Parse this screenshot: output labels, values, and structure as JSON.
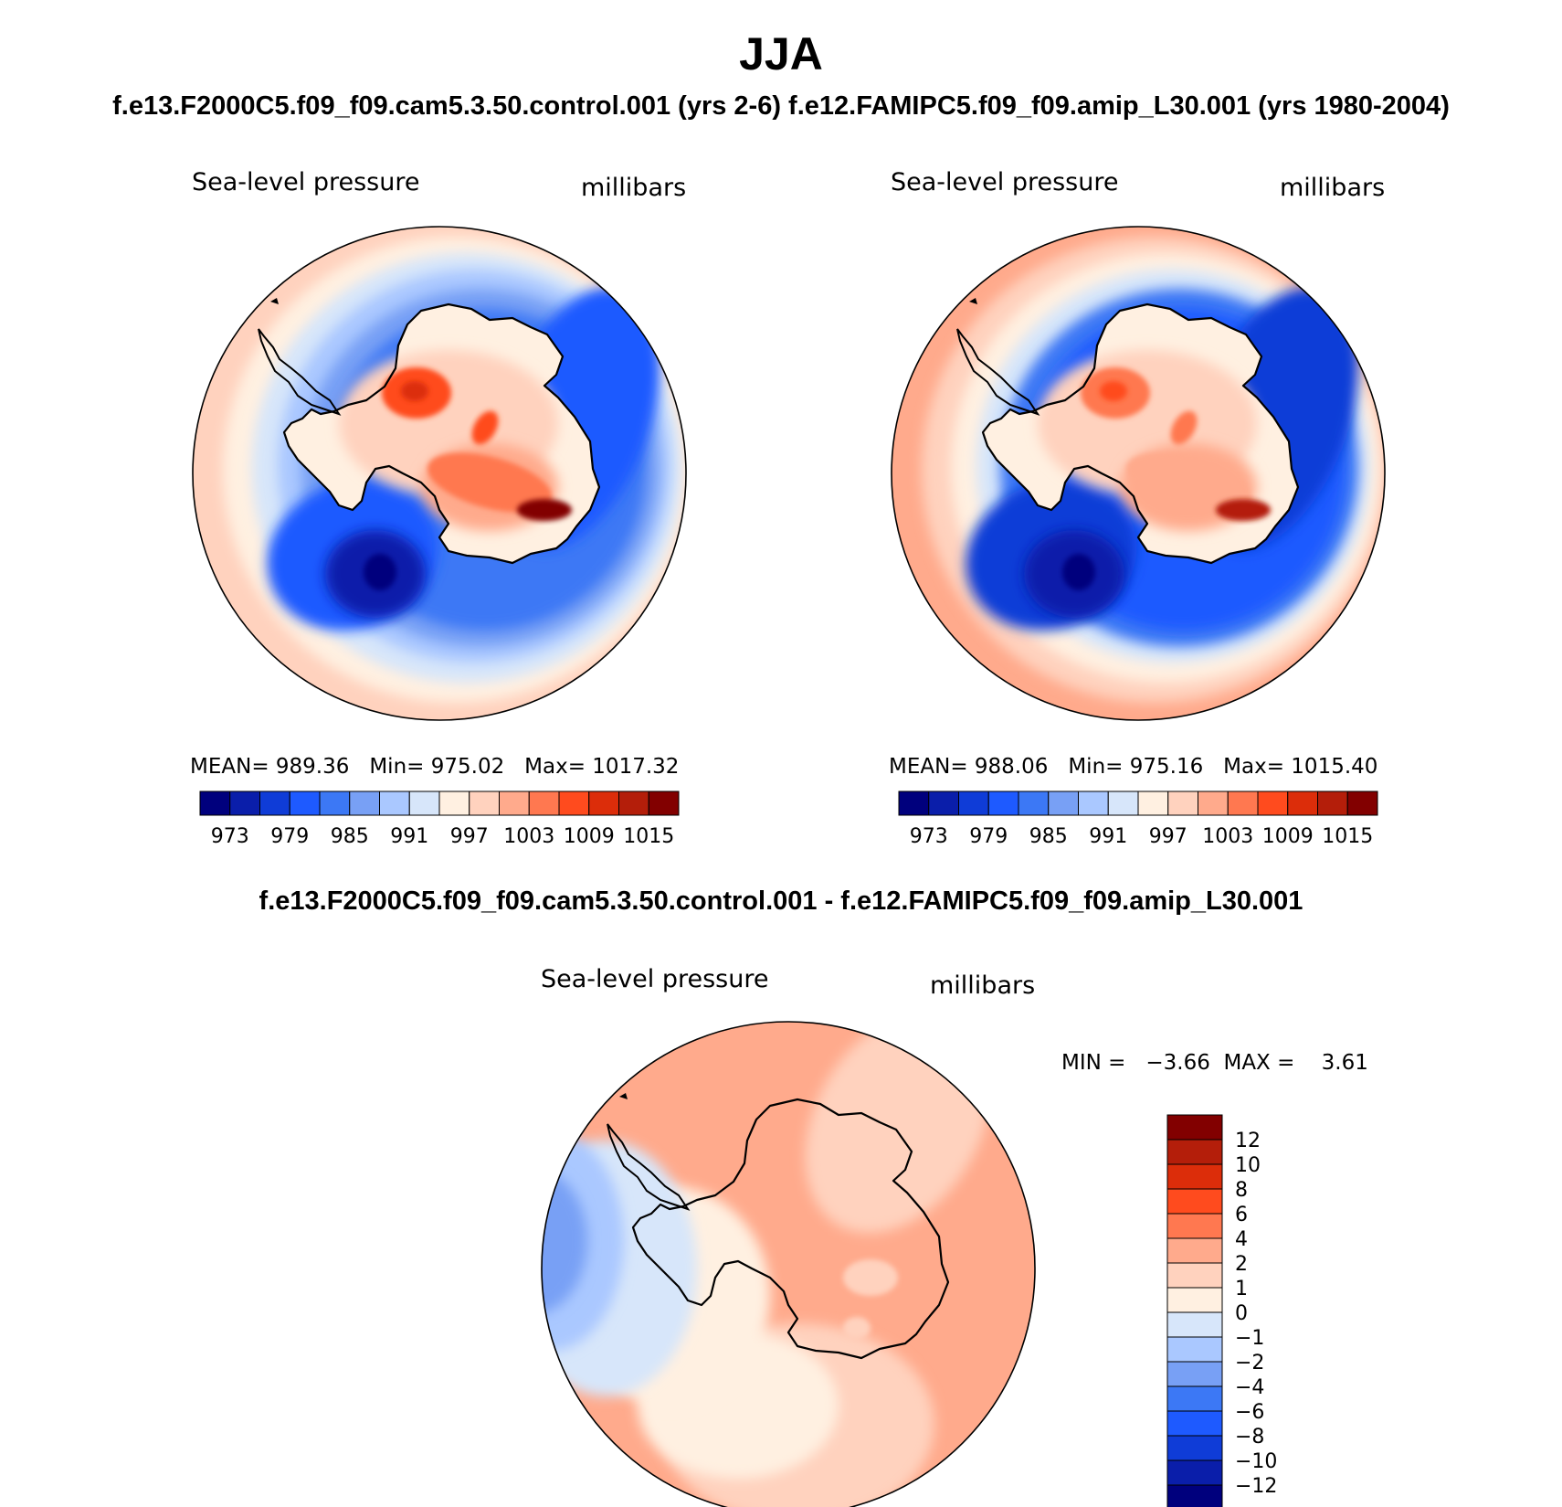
{
  "figure": {
    "title": "JJA",
    "subtitle_top": "f.e13.F2000C5.f09_f09.cam5.3.50.control.001 (yrs 2-6)  f.e12.FAMIPC5.f09_f09.amip_L30.001 (yrs 1980-2004)",
    "subtitle_diff": "f.e13.F2000C5.f09_f09.cam5.3.50.control.001 - f.e12.FAMIPC5.f09_f09.amip_L30.001"
  },
  "palette": {
    "abs_colors": [
      "#00007d",
      "#0a1eaa",
      "#0f3cd7",
      "#1e5aff",
      "#3c78f5",
      "#78a0f5",
      "#aac8ff",
      "#d7e6fa",
      "#fff0e1",
      "#ffd2be",
      "#ffaa8c",
      "#ff7850",
      "#ff4b1e",
      "#dc2d0a",
      "#b41e0a",
      "#820000"
    ],
    "diff_colors": [
      "#00007d",
      "#0a1eaa",
      "#0f3cd7",
      "#1e5aff",
      "#3c78f5",
      "#78a0f5",
      "#aac8ff",
      "#d7e6fa",
      "#fff0e1",
      "#ffd2be",
      "#ffaa8c",
      "#ff7850",
      "#ff4b1e",
      "#dc2d0a",
      "#b41e0a",
      "#820000"
    ],
    "coastline": "#000000"
  },
  "chart_data": [
    {
      "type": "heatmap",
      "projection": "south-polar-stereographic",
      "title": "Sea-level pressure",
      "units": "millibars",
      "stats": {
        "mean_label": "MEAN=",
        "mean": "989.36",
        "min_label": "Min=",
        "min": "975.02",
        "max_label": "Max=",
        "max": "1017.32"
      },
      "contour_levels": [
        970,
        973,
        976,
        979,
        982,
        985,
        988,
        991,
        994,
        997,
        1000,
        1003,
        1006,
        1009,
        1012,
        1015
      ],
      "colorbar_tick_labels": [
        "973",
        "979",
        "985",
        "991",
        "997",
        "1003",
        "1009",
        "1015"
      ],
      "colorbar_orientation": "horizontal",
      "regions": [
        {
          "name": "ocean-outer-ring",
          "level_index": 9
        },
        {
          "name": "ocean-subpolar-trough",
          "level_index": 4
        },
        {
          "name": "weddell-low",
          "level_index": 1
        },
        {
          "name": "ross-amundsen-low",
          "level_index": 0
        },
        {
          "name": "antarctic-plateau-high",
          "level_index": 13
        },
        {
          "name": "east-antarctic-high",
          "level_index": 15
        }
      ]
    },
    {
      "type": "heatmap",
      "projection": "south-polar-stereographic",
      "title": "Sea-level pressure",
      "units": "millibars",
      "stats": {
        "mean_label": "MEAN=",
        "mean": "988.06",
        "min_label": "Min=",
        "min": "975.16",
        "max_label": "Max=",
        "max": "1015.40"
      },
      "contour_levels": [
        970,
        973,
        976,
        979,
        982,
        985,
        988,
        991,
        994,
        997,
        1000,
        1003,
        1006,
        1009,
        1012,
        1015
      ],
      "colorbar_tick_labels": [
        "973",
        "979",
        "985",
        "991",
        "997",
        "1003",
        "1009",
        "1015"
      ],
      "colorbar_orientation": "horizontal",
      "regions": [
        {
          "name": "ocean-outer-ring",
          "level_index": 10
        },
        {
          "name": "ocean-subpolar-trough",
          "level_index": 3
        },
        {
          "name": "weddell-low",
          "level_index": 1
        },
        {
          "name": "ross-amundsen-low",
          "level_index": 0
        },
        {
          "name": "antarctic-plateau-high",
          "level_index": 12
        },
        {
          "name": "east-antarctic-high",
          "level_index": 14
        }
      ]
    },
    {
      "type": "heatmap",
      "projection": "south-polar-stereographic",
      "title": "Sea-level pressure",
      "units": "millibars",
      "stats": {
        "min_label": "MIN =",
        "min": "−3.66",
        "max_label": "MAX =",
        "max": "3.61"
      },
      "contour_levels": [
        -12,
        -10,
        -8,
        -6,
        -4,
        -2,
        -1,
        0,
        1,
        2,
        4,
        6,
        8,
        10,
        12
      ],
      "colorbar_tick_labels": [
        "12",
        "10",
        "8",
        "6",
        "4",
        "2",
        "1",
        "0",
        "−1",
        "−2",
        "−4",
        "−6",
        "−8",
        "−10",
        "−12"
      ],
      "colorbar_orientation": "vertical",
      "regions": [
        {
          "name": "weddell-negative",
          "value_range": [
            -4,
            -2
          ]
        },
        {
          "name": "weddell-weak-negative",
          "value_range": [
            -1,
            0
          ]
        },
        {
          "name": "antarctica-positive",
          "value_range": [
            2,
            4
          ]
        },
        {
          "name": "south-pacific-positive",
          "value_range": [
            1,
            2
          ]
        }
      ]
    }
  ]
}
